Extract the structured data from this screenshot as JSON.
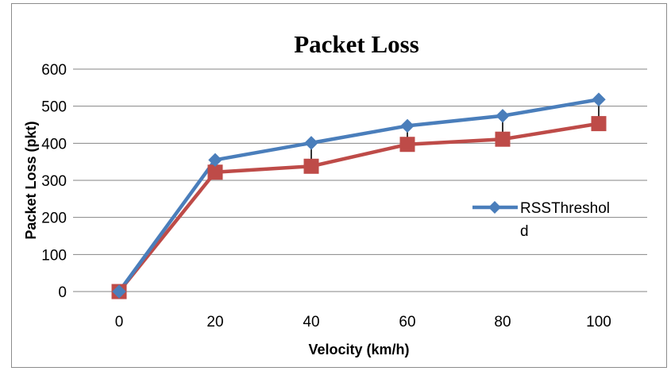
{
  "chart_data": {
    "type": "line",
    "title": "Packet Loss",
    "xlabel": "Velocity (km/h)",
    "ylabel": "Packet Loss (pkt)",
    "categories": [
      "0",
      "20",
      "40",
      "60",
      "80",
      "100"
    ],
    "ylim": [
      0,
      600
    ],
    "yticks": [
      0,
      100,
      200,
      300,
      400,
      500,
      600
    ],
    "grid": true,
    "legend_position": "right",
    "series": [
      {
        "name": "RSSThreshold",
        "legend_lines": [
          "RSSThreshol",
          "d"
        ],
        "values": [
          0,
          355,
          401,
          447,
          474,
          518
        ],
        "color": "#4a7ebb",
        "marker": "diamond"
      },
      {
        "values": [
          0,
          322,
          338,
          397,
          411,
          453
        ],
        "color": "#be4b48",
        "marker": "square"
      }
    ]
  }
}
